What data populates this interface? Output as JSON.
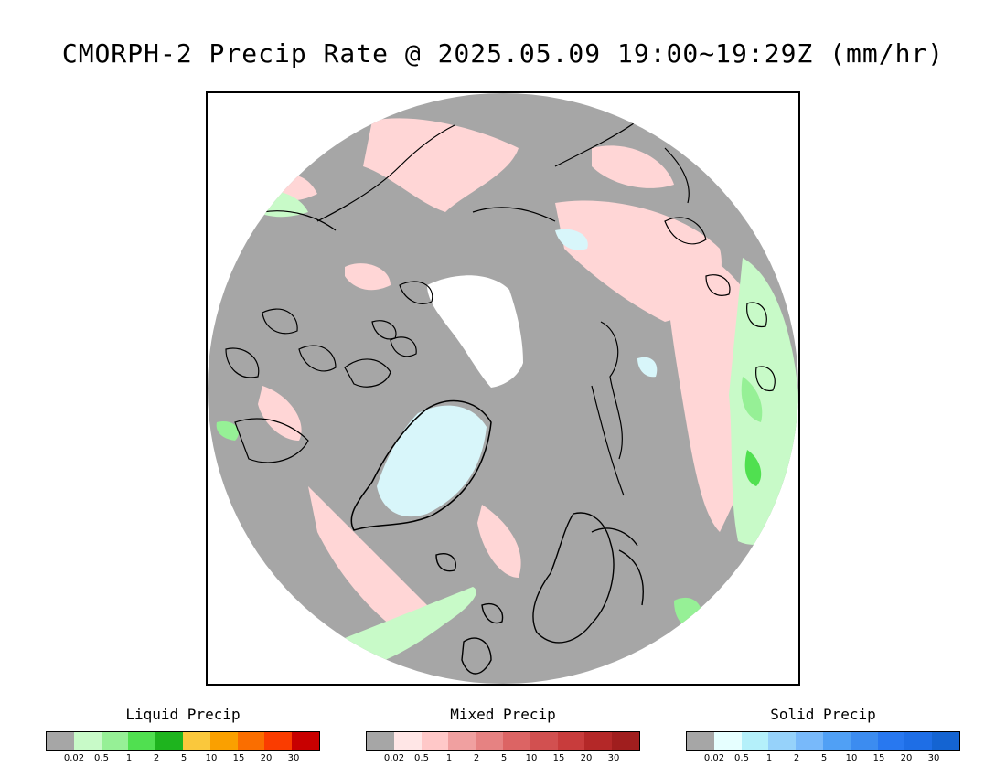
{
  "title": "CMORPH-2 Precip Rate @ 2025.05.09 19:00~19:29Z (mm/hr)",
  "map": {
    "projection": "polar-stereographic-north",
    "colors": {
      "background_no_precip": "#a6a6a6",
      "sea_ice": "#ffffff",
      "coastline": "#000000"
    }
  },
  "legends": [
    {
      "title": "Liquid Precip",
      "ticks": [
        "0.02",
        "0.5",
        "1",
        "2",
        "5",
        "10",
        "15",
        "20",
        "30"
      ],
      "colors": [
        "#a6a6a6",
        "#c8fac8",
        "#96f096",
        "#50e050",
        "#1eb41e",
        "#fac83c",
        "#faa000",
        "#fa6e00",
        "#fa3c00",
        "#c80000"
      ]
    },
    {
      "title": "Mixed Precip",
      "ticks": [
        "0.02",
        "0.5",
        "1",
        "2",
        "5",
        "10",
        "15",
        "20",
        "30"
      ],
      "colors": [
        "#a6a6a6",
        "#ffe6e6",
        "#ffc8c8",
        "#f0a0a0",
        "#e68282",
        "#dc6464",
        "#d25050",
        "#c83c3c",
        "#b42828",
        "#a01e1e"
      ]
    },
    {
      "title": "Solid Precip",
      "ticks": [
        "0.02",
        "0.5",
        "1",
        "2",
        "5",
        "10",
        "15",
        "20",
        "30"
      ],
      "colors": [
        "#a6a6a6",
        "#e6ffff",
        "#b4f0fa",
        "#96d2fa",
        "#78b9fa",
        "#50a0f5",
        "#3c8cf0",
        "#2878f0",
        "#1e6ee6",
        "#1464d2"
      ]
    }
  ]
}
